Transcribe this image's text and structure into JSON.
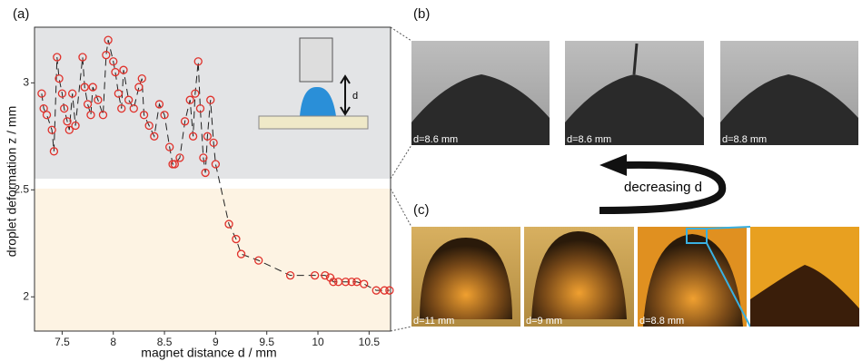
{
  "chart_data": {
    "type": "scatter",
    "panel_label": "(a)",
    "xlabel": "magnet distance d / mm",
    "ylabel": "droplet deformation z / mm",
    "inset_label": "d",
    "x": [
      7.3,
      7.32,
      7.35,
      7.4,
      7.42,
      7.45,
      7.47,
      7.5,
      7.52,
      7.55,
      7.57,
      7.6,
      7.63,
      7.7,
      7.72,
      7.75,
      7.78,
      7.8,
      7.85,
      7.9,
      7.93,
      7.95,
      8.0,
      8.02,
      8.05,
      8.08,
      8.1,
      8.15,
      8.2,
      8.25,
      8.28,
      8.3,
      8.35,
      8.4,
      8.45,
      8.5,
      8.55,
      8.58,
      8.6,
      8.65,
      8.7,
      8.75,
      8.78,
      8.8,
      8.83,
      8.85,
      8.88,
      8.9,
      8.92,
      8.95,
      8.98,
      9.0,
      9.13,
      9.2,
      9.25,
      9.42,
      9.73,
      9.97,
      10.07,
      10.12,
      10.15,
      10.2,
      10.27,
      10.33,
      10.38,
      10.45,
      10.57,
      10.65,
      10.7
    ],
    "values": [
      2.95,
      2.88,
      2.85,
      2.78,
      2.68,
      3.12,
      3.02,
      2.95,
      2.88,
      2.82,
      2.78,
      2.95,
      2.8,
      3.12,
      2.98,
      2.9,
      2.85,
      2.98,
      2.92,
      2.85,
      3.13,
      3.2,
      3.1,
      3.05,
      2.95,
      2.88,
      3.06,
      2.92,
      2.88,
      2.98,
      3.02,
      2.85,
      2.8,
      2.75,
      2.9,
      2.85,
      2.7,
      2.62,
      2.62,
      2.65,
      2.82,
      2.92,
      2.75,
      2.95,
      3.1,
      2.88,
      2.65,
      2.58,
      2.75,
      2.92,
      2.72,
      2.62,
      2.34,
      2.27,
      2.2,
      2.17,
      2.1,
      2.1,
      2.1,
      2.09,
      2.07,
      2.07,
      2.07,
      2.07,
      2.07,
      2.06,
      2.03,
      2.03,
      2.03
    ],
    "color": "#e0302a",
    "xlim": [
      7.23,
      10.71
    ],
    "ylim": [
      1.84,
      3.26
    ],
    "xticks": [
      7.5,
      8,
      8.5,
      9,
      9.5,
      10,
      10.5
    ],
    "yticks": [
      2,
      2.5,
      3
    ]
  },
  "panels": {
    "b": {
      "label": "(b)",
      "images": [
        "d=8.6 mm",
        "d=8.6 mm",
        "d=8.8 mm"
      ]
    },
    "arrow_label": "decreasing d",
    "c": {
      "label": "(c)",
      "images": [
        "d=11 mm",
        "d=9 mm",
        "d=8.8 mm"
      ]
    }
  }
}
